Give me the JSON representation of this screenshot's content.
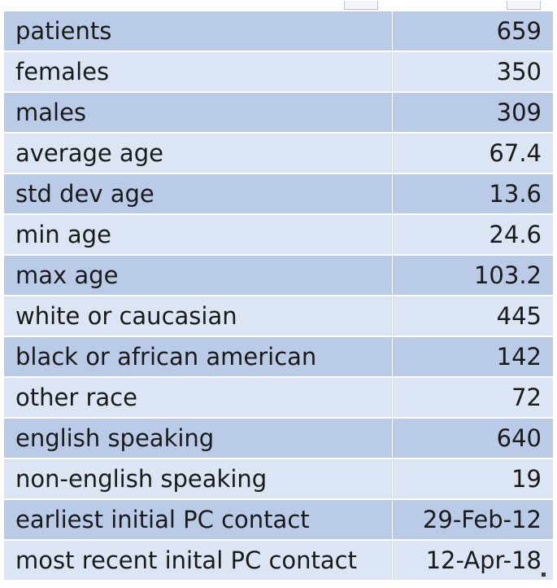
{
  "table": {
    "rows": [
      {
        "label": "patients",
        "value": "659"
      },
      {
        "label": "females",
        "value": "350"
      },
      {
        "label": "males",
        "value": "309"
      },
      {
        "label": "average age",
        "value": "67.4"
      },
      {
        "label": "std dev age",
        "value": "13.6"
      },
      {
        "label": "min age",
        "value": "24.6"
      },
      {
        "label": "max age",
        "value": "103.2"
      },
      {
        "label": "white or caucasian",
        "value": "445"
      },
      {
        "label": "black or african american",
        "value": "142"
      },
      {
        "label": "other race",
        "value": "72"
      },
      {
        "label": "english speaking",
        "value": "640"
      },
      {
        "label": "non-english speaking",
        "value": "19"
      },
      {
        "label": "earliest initial PC contact",
        "value": "29-Feb-12"
      },
      {
        "label": "most recent inital PC contact",
        "value": "12-Apr-18"
      }
    ]
  },
  "colors": {
    "row_dark": "#b9cbe6",
    "row_light": "#dbe5f3",
    "text": "#1a1a1a"
  }
}
